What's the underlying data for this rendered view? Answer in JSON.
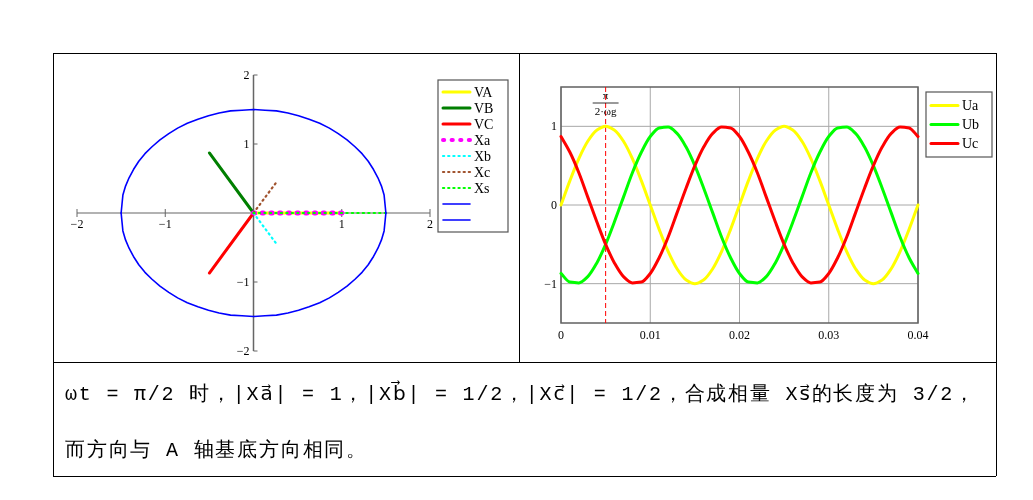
{
  "chart_data": [
    {
      "type": "line",
      "xlim": [
        -2,
        2
      ],
      "xticks": [
        -2,
        -1,
        {
          "value": 0,
          "label": null
        },
        1,
        2
      ],
      "ylim": [
        -2,
        2
      ],
      "yticks": [
        -2,
        -1,
        1,
        2
      ],
      "grid": false,
      "legend": "top right",
      "series": [
        {
          "name": "VA",
          "color": "#ffff00",
          "line_style": "solid",
          "x": [
            0,
            1
          ],
          "values": [
            0,
            0
          ]
        },
        {
          "name": "VB",
          "color": "#007f00",
          "line_style": "solid",
          "x": [
            0,
            -0.5
          ],
          "values": [
            0,
            0.87
          ]
        },
        {
          "name": "VC",
          "color": "#ff0000",
          "line_style": "solid",
          "x": [
            0,
            -0.5
          ],
          "values": [
            0,
            -0.87
          ]
        },
        {
          "name": "Xa",
          "color": "#ff00ff",
          "line_style": "dotted",
          "x": [
            0,
            1
          ],
          "values": [
            0,
            0
          ]
        },
        {
          "name": "Xb",
          "color": "#00ffff",
          "line_style": "dotted",
          "x": [
            0,
            0.25
          ],
          "values": [
            0,
            -0.43
          ]
        },
        {
          "name": "Xc",
          "color": "#a0522d",
          "line_style": "dotted",
          "x": [
            0,
            0.25
          ],
          "values": [
            0,
            0.43
          ]
        },
        {
          "name": "Xs",
          "color": "#00ff00",
          "line_style": "dotted",
          "x": [
            0,
            1.5
          ],
          "values": [
            0,
            0
          ]
        },
        {
          "color": "#0000ff",
          "line_style": "solid",
          "x": [
            1.5,
            1.49,
            1.48,
            1.45,
            1.41,
            1.36,
            1.3,
            1.23,
            1.15,
            1.06,
            0.96,
            0.86,
            0.75,
            0.63,
            0.51,
            0.39,
            0.26,
            0.13,
            0,
            -0.13,
            -0.26,
            -0.39,
            -0.51,
            -0.63,
            -0.75,
            -0.86,
            -0.96,
            -1.06,
            -1.15,
            -1.23,
            -1.3,
            -1.36,
            -1.41,
            -1.45,
            -1.48,
            -1.49,
            -1.5
          ],
          "values": [
            0,
            0.13,
            0.26,
            0.39,
            0.51,
            0.63,
            0.75,
            0.86,
            0.96,
            1.06,
            1.15,
            1.23,
            1.3,
            1.36,
            1.41,
            1.45,
            1.48,
            1.49,
            1.5,
            1.49,
            1.48,
            1.45,
            1.41,
            1.36,
            1.3,
            1.23,
            1.15,
            1.06,
            0.96,
            0.86,
            0.75,
            0.63,
            0.51,
            0.39,
            0.26,
            0.13,
            0
          ]
        },
        {
          "color": "#0000ff",
          "line_style": "solid",
          "x": [
            1.5,
            1.49,
            1.48,
            1.45,
            1.41,
            1.36,
            1.3,
            1.23,
            1.15,
            1.06,
            0.96,
            0.86,
            0.75,
            0.63,
            0.51,
            0.39,
            0.26,
            0.13,
            0,
            -0.13,
            -0.26,
            -0.39,
            -0.51,
            -0.63,
            -0.75,
            -0.86,
            -0.96,
            -1.06,
            -1.15,
            -1.23,
            -1.3,
            -1.36,
            -1.41,
            -1.45,
            -1.48,
            -1.49,
            -1.5
          ],
          "values": [
            0,
            -0.13,
            -0.26,
            -0.39,
            -0.51,
            -0.63,
            -0.75,
            -0.86,
            -0.96,
            -1.06,
            -1.15,
            -1.23,
            -1.3,
            -1.36,
            -1.41,
            -1.45,
            -1.48,
            -1.49,
            -1.5,
            -1.49,
            -1.48,
            -1.45,
            -1.41,
            -1.36,
            -1.3,
            -1.23,
            -1.15,
            -1.06,
            -0.96,
            -0.86,
            -0.75,
            -0.63,
            -0.51,
            -0.39,
            -0.26,
            -0.13,
            0
          ]
        }
      ]
    },
    {
      "type": "line",
      "xlim": [
        0,
        0.04
      ],
      "xticks": [
        0,
        0.01,
        0.02,
        0.03,
        0.04
      ],
      "ylim": [
        -1.5,
        1.5
      ],
      "yticks": [
        -1,
        0,
        1
      ],
      "grid": true,
      "legend": "top right",
      "ref_lines": [
        {
          "axis": "x",
          "value": 0.005,
          "label": "π\n2·ωg",
          "color": "#ff0000",
          "line_style": "dashed"
        }
      ],
      "x": [
        0,
        0.001,
        0.002,
        0.003,
        0.004,
        0.005,
        0.006,
        0.007,
        0.008,
        0.009,
        0.01,
        0.011,
        0.012,
        0.013,
        0.014,
        0.015,
        0.016,
        0.017,
        0.018,
        0.019,
        0.02,
        0.021,
        0.022,
        0.023,
        0.024,
        0.025,
        0.026,
        0.027,
        0.028,
        0.029,
        0.03,
        0.031,
        0.032,
        0.033,
        0.034,
        0.035,
        0.036,
        0.037,
        0.038,
        0.039,
        0.04
      ],
      "series": [
        {
          "name": "Ua",
          "color": "#ffff00",
          "values": [
            0,
            0.31,
            0.59,
            0.81,
            0.95,
            1,
            0.95,
            0.81,
            0.59,
            0.31,
            0,
            -0.31,
            -0.59,
            -0.81,
            -0.95,
            -1,
            -0.95,
            -0.81,
            -0.59,
            -0.31,
            0,
            0.31,
            0.59,
            0.81,
            0.95,
            1,
            0.95,
            0.81,
            0.59,
            0.31,
            0,
            -0.31,
            -0.59,
            -0.81,
            -0.95,
            -1,
            -0.95,
            -0.81,
            -0.59,
            -0.31,
            0
          ]
        },
        {
          "name": "Ub",
          "color": "#00ff00",
          "values": [
            -0.87,
            -0.98,
            -0.99,
            -0.91,
            -0.74,
            -0.5,
            -0.21,
            0.1,
            0.41,
            0.67,
            0.87,
            0.98,
            0.99,
            0.91,
            0.74,
            0.5,
            0.21,
            -0.1,
            -0.41,
            -0.67,
            -0.87,
            -0.98,
            -0.99,
            -0.91,
            -0.74,
            -0.5,
            -0.21,
            0.1,
            0.41,
            0.67,
            0.87,
            0.98,
            0.99,
            0.91,
            0.74,
            0.5,
            0.21,
            -0.1,
            -0.41,
            -0.67,
            -0.87
          ]
        },
        {
          "name": "Uc",
          "color": "#ff0000",
          "values": [
            0.87,
            0.67,
            0.41,
            0.1,
            -0.21,
            -0.5,
            -0.74,
            -0.91,
            -0.99,
            -0.98,
            -0.87,
            -0.67,
            -0.41,
            -0.1,
            0.21,
            0.5,
            0.74,
            0.91,
            0.99,
            0.98,
            0.87,
            0.67,
            0.41,
            0.1,
            -0.21,
            -0.5,
            -0.74,
            -0.91,
            -0.99,
            -0.98,
            -0.87,
            -0.67,
            -0.41,
            -0.1,
            0.21,
            0.5,
            0.74,
            0.91,
            0.99,
            0.98,
            0.87
          ]
        }
      ]
    },
    {
      "type": "other",
      "annotations": [
        "ωt = π/2 时，|Xa⃗| = 1，|Xb⃗| = 1/2，|Xc⃗| = 1/2，合成相量 Xs⃗的长度为 3/2，而方向与 A 轴基底方向相同。"
      ]
    }
  ]
}
